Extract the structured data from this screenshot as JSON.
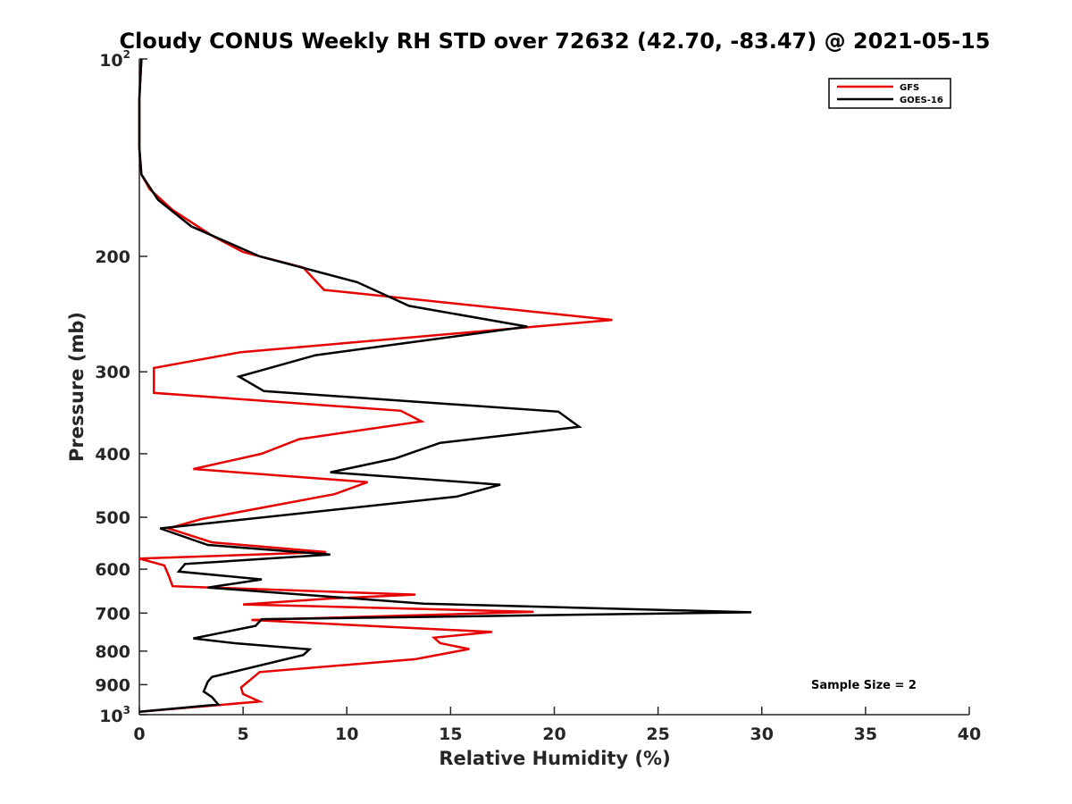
{
  "chart_data": {
    "type": "line",
    "title": "Cloudy CONUS Weekly RH STD over 72632 (42.70, -83.47) @ 2021-05-15",
    "xlabel": "Relative Humidity (%)",
    "ylabel": "Pressure (mb)",
    "xlim": [
      0,
      40
    ],
    "ylim": [
      100,
      1000
    ],
    "y_scale": "log",
    "y_reversed": true,
    "x_ticks": [
      0,
      5,
      10,
      15,
      20,
      25,
      30,
      35,
      40
    ],
    "y_ticks": [
      {
        "value": 100,
        "base": "10",
        "exp": "2"
      },
      {
        "value": 200,
        "label": "200"
      },
      {
        "value": 300,
        "label": "300"
      },
      {
        "value": 400,
        "label": "400"
      },
      {
        "value": 500,
        "label": "500"
      },
      {
        "value": 600,
        "label": "600"
      },
      {
        "value": 700,
        "label": "700"
      },
      {
        "value": 800,
        "label": "800"
      },
      {
        "value": 900,
        "label": "900"
      },
      {
        "value": 1000,
        "base": "10",
        "exp": "3"
      }
    ],
    "grid": false,
    "legend_position": "top-right",
    "annotation": "Sample Size = 2",
    "series": [
      {
        "name": "GFS",
        "color": "#e60000",
        "points": [
          [
            0.1,
            100
          ],
          [
            0.0,
            115
          ],
          [
            0.0,
            125
          ],
          [
            0.0,
            137
          ],
          [
            0.1,
            150
          ],
          [
            0.5,
            158
          ],
          [
            1.6,
            170
          ],
          [
            3.5,
            186
          ],
          [
            5.0,
            197
          ],
          [
            7.9,
            208
          ],
          [
            8.9,
            225
          ],
          [
            22.8,
            250
          ],
          [
            4.9,
            280
          ],
          [
            0.7,
            296
          ],
          [
            0.7,
            323
          ],
          [
            12.6,
            344
          ],
          [
            13.6,
            357
          ],
          [
            7.7,
            380
          ],
          [
            5.9,
            400
          ],
          [
            2.6,
            422
          ],
          [
            11.0,
            442
          ],
          [
            9.4,
            461
          ],
          [
            3.0,
            503
          ],
          [
            1.4,
            520
          ],
          [
            3.5,
            546
          ],
          [
            9.0,
            565
          ],
          [
            0.0,
            578
          ],
          [
            1.2,
            592
          ],
          [
            1.4,
            612
          ],
          [
            1.6,
            637
          ],
          [
            13.3,
            656
          ],
          [
            9.2,
            665
          ],
          [
            5.0,
            679
          ],
          [
            19.0,
            697
          ],
          [
            5.4,
            717
          ],
          [
            17.0,
            748
          ],
          [
            14.2,
            763
          ],
          [
            14.5,
            778
          ],
          [
            15.9,
            794
          ],
          [
            13.3,
            823
          ],
          [
            5.8,
            861
          ],
          [
            4.9,
            909
          ],
          [
            5.0,
            930
          ],
          [
            5.8,
            955
          ],
          [
            0.0,
            990
          ]
        ]
      },
      {
        "name": "GOES-16",
        "color": "#000000",
        "points": [
          [
            0.1,
            100
          ],
          [
            0.0,
            115
          ],
          [
            0.0,
            137
          ],
          [
            0.1,
            150
          ],
          [
            0.9,
            164
          ],
          [
            2.5,
            180
          ],
          [
            5.8,
            200
          ],
          [
            10.5,
            219
          ],
          [
            13.0,
            238
          ],
          [
            18.7,
            256
          ],
          [
            8.5,
            283
          ],
          [
            4.8,
            305
          ],
          [
            6.0,
            321
          ],
          [
            20.2,
            345
          ],
          [
            21.2,
            364
          ],
          [
            14.5,
            385
          ],
          [
            12.3,
            407
          ],
          [
            9.2,
            427
          ],
          [
            17.4,
            446
          ],
          [
            15.3,
            465
          ],
          [
            1.0,
            520
          ],
          [
            3.3,
            551
          ],
          [
            9.2,
            570
          ],
          [
            2.2,
            589
          ],
          [
            1.9,
            605
          ],
          [
            5.9,
            622
          ],
          [
            3.3,
            640
          ],
          [
            6.2,
            650
          ],
          [
            13.7,
            677
          ],
          [
            29.5,
            698
          ],
          [
            5.9,
            715
          ],
          [
            5.6,
            732
          ],
          [
            2.6,
            765
          ],
          [
            4.6,
            778
          ],
          [
            8.2,
            795
          ],
          [
            7.9,
            811
          ],
          [
            3.5,
            876
          ],
          [
            3.3,
            891
          ],
          [
            3.1,
            922
          ],
          [
            3.5,
            940
          ],
          [
            3.8,
            965
          ],
          [
            0.0,
            990
          ]
        ]
      }
    ]
  }
}
